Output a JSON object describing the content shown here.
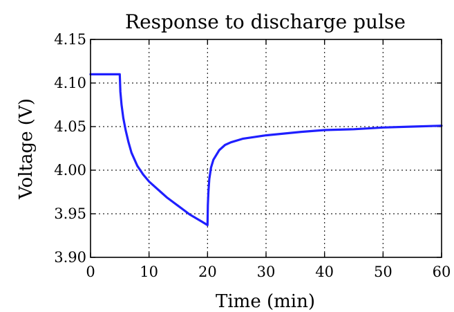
{
  "chart_data": {
    "type": "line",
    "title": "Response to discharge pulse",
    "xlabel": "Time (min)",
    "ylabel": "Voltage (V)",
    "xlim": [
      0,
      60
    ],
    "ylim": [
      3.9,
      4.15
    ],
    "x_ticks": [
      0,
      10,
      20,
      30,
      40,
      50,
      60
    ],
    "x_tick_labels": [
      "0",
      "10",
      "20",
      "30",
      "40",
      "50",
      "60"
    ],
    "y_ticks": [
      3.9,
      3.95,
      4.0,
      4.05,
      4.1,
      4.15
    ],
    "y_tick_labels": [
      "3.90",
      "3.95",
      "4.00",
      "4.05",
      "4.10",
      "4.15"
    ],
    "grid": true,
    "series": [
      {
        "color": "#1f1fff",
        "points": [
          [
            0,
            4.11
          ],
          [
            5.0,
            4.11
          ],
          [
            5.1,
            4.09
          ],
          [
            5.3,
            4.075
          ],
          [
            5.6,
            4.06
          ],
          [
            6.0,
            4.046
          ],
          [
            6.5,
            4.032
          ],
          [
            7.0,
            4.02
          ],
          [
            8.0,
            4.005
          ],
          [
            9.0,
            3.995
          ],
          [
            10.0,
            3.987
          ],
          [
            11.0,
            3.981
          ],
          [
            12.0,
            3.975
          ],
          [
            13.0,
            3.969
          ],
          [
            14.0,
            3.964
          ],
          [
            15.0,
            3.959
          ],
          [
            16.0,
            3.954
          ],
          [
            17.0,
            3.949
          ],
          [
            18.0,
            3.945
          ],
          [
            19.0,
            3.941
          ],
          [
            20.0,
            3.937
          ],
          [
            20.05,
            3.96
          ],
          [
            20.15,
            3.975
          ],
          [
            20.3,
            3.99
          ],
          [
            20.6,
            4.003
          ],
          [
            21.0,
            4.012
          ],
          [
            22.0,
            4.023
          ],
          [
            23.0,
            4.029
          ],
          [
            24.0,
            4.032
          ],
          [
            26.0,
            4.036
          ],
          [
            28.0,
            4.038
          ],
          [
            30.0,
            4.04
          ],
          [
            33.0,
            4.042
          ],
          [
            36.0,
            4.044
          ],
          [
            40.0,
            4.046
          ],
          [
            45.0,
            4.047
          ],
          [
            50.0,
            4.049
          ],
          [
            55.0,
            4.05
          ],
          [
            60.0,
            4.051
          ]
        ]
      }
    ]
  }
}
